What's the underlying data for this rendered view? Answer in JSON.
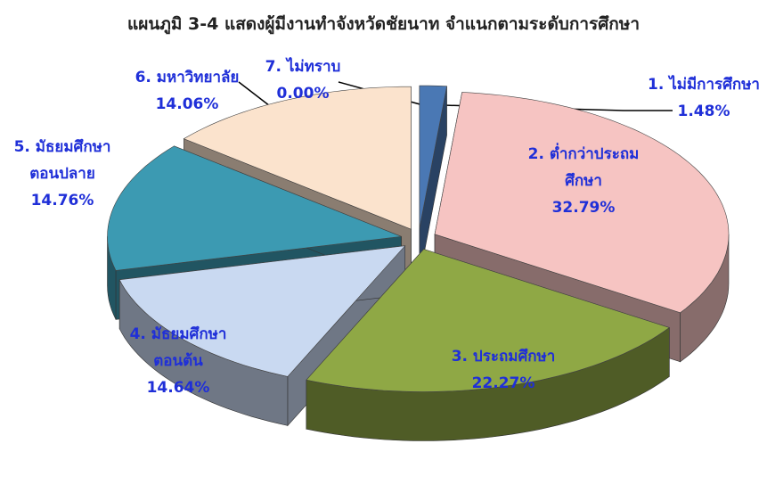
{
  "chart_data": {
    "type": "pie3d",
    "title": "แผนภูมิ 3-4 แสดงผู้มีงานทำจังหวัดชัยนาท จำแนกตามระดับการศึกษา",
    "categories": [
      "1. ไม่มีการศึกษา",
      "2. ต่ำกว่าประถมศึกษา",
      "3. ประถมศึกษา",
      "4. มัธยมศึกษาตอนต้น",
      "5. มัธยมศึกษาตอนปลาย",
      "6. มหาวิทยาลัย",
      "7. ไม่ทราบ"
    ],
    "values": [
      1.48,
      32.79,
      22.27,
      14.64,
      14.76,
      14.06,
      0.0
    ],
    "value_labels": [
      "1.48%",
      "32.79%",
      "22.27%",
      "14.64%",
      "14.76%",
      "14.06%",
      "0.00%"
    ],
    "colors": [
      "#4a78b4",
      "#f6c4c2",
      "#8fa845",
      "#c9d9f1",
      "#3c9ab2",
      "#fbe3cd",
      "#9aa0a8"
    ]
  }
}
